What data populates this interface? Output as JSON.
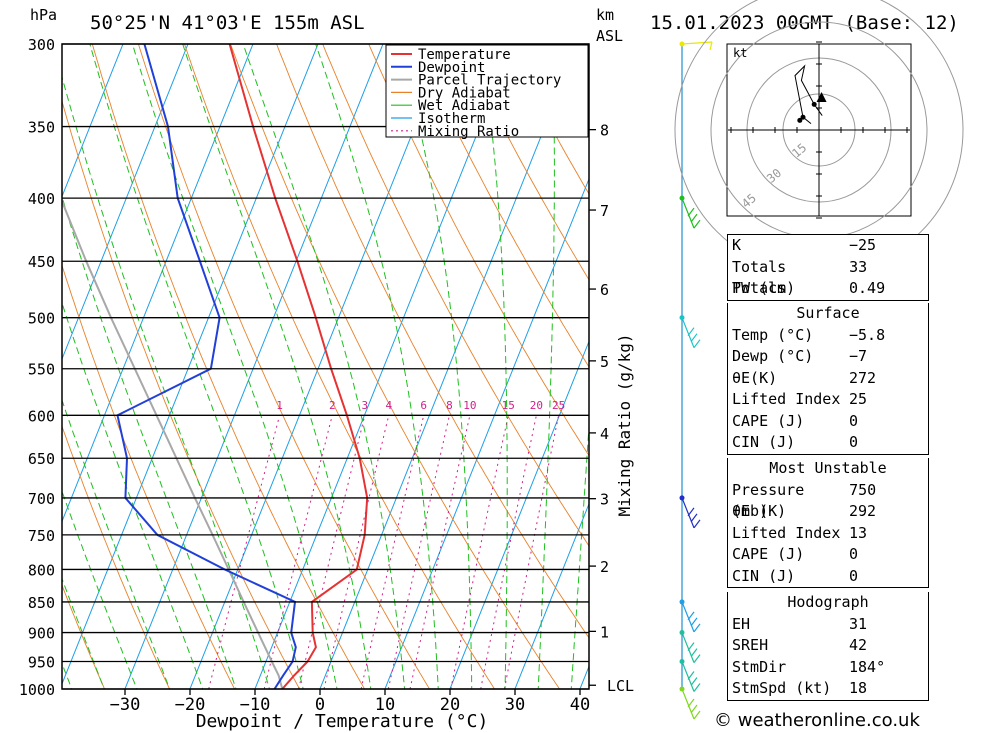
{
  "header": {
    "location": "50°25'N 41°03'E 155m ASL",
    "datetime": "15.01.2023 00GMT (Base: 12)",
    "left_unit": "hPa",
    "km_unit": "km",
    "asl_unit": "ASL"
  },
  "chart_data": {
    "type": "line",
    "title": "50°25'N 41°03'E 155m ASL",
    "xlabel": "Dewpoint / Temperature (°C)",
    "ylabel": "hPa",
    "right_axis_label": "Mixing Ratio (g/kg)",
    "x_ticks": [
      -30,
      -20,
      -10,
      0,
      10,
      20,
      30,
      40
    ],
    "pressure_ticks": [
      300,
      350,
      400,
      450,
      500,
      550,
      600,
      650,
      700,
      750,
      800,
      850,
      900,
      950,
      1000
    ],
    "km_ticks": [
      {
        "label": "8",
        "p": 352
      },
      {
        "label": "7",
        "p": 409
      },
      {
        "label": "6",
        "p": 474
      },
      {
        "label": "5",
        "p": 542
      },
      {
        "label": "4",
        "p": 620
      },
      {
        "label": "3",
        "p": 701
      },
      {
        "label": "2",
        "p": 795
      },
      {
        "label": "1",
        "p": 898
      },
      {
        "label": "LCL",
        "p": 993
      }
    ],
    "mixing_ratio_labels": [
      "1",
      "2",
      "3",
      "4",
      "6",
      "8",
      "10",
      "15",
      "20",
      "25"
    ],
    "mixing_ratio_values": [
      1,
      2,
      3,
      4,
      6,
      8,
      10,
      15,
      20,
      25
    ],
    "legend": [
      "Temperature",
      "Dewpoint",
      "Parcel Trajectory",
      "Dry Adiabat",
      "Wet Adiabat",
      "Isotherm",
      "Mixing Ratio"
    ],
    "legend_location": "upper-right",
    "colors": {
      "temperature": "#e53232",
      "dewpoint": "#2040d8",
      "parcel": "#a8a8a8",
      "dry_adiabat": "#e8822a",
      "wet_adiabat": "#1fbf1f",
      "isotherm": "#1e9fe6",
      "mixing_ratio": "#d0208c"
    },
    "series": [
      {
        "name": "Temperature",
        "points": [
          [
            1000,
            -5.8
          ],
          [
            975,
            -4.8
          ],
          [
            950,
            -3.6
          ],
          [
            925,
            -3.2
          ],
          [
            900,
            -4.6
          ],
          [
            850,
            -6.6
          ],
          [
            800,
            -1.7
          ],
          [
            750,
            -2.6
          ],
          [
            700,
            -4.5
          ],
          [
            650,
            -8.1
          ],
          [
            600,
            -12.7
          ],
          [
            550,
            -18.0
          ],
          [
            500,
            -23.5
          ],
          [
            450,
            -29.8
          ],
          [
            400,
            -37.1
          ],
          [
            350,
            -44.9
          ],
          [
            300,
            -53.6
          ]
        ]
      },
      {
        "name": "Dewpoint",
        "points": [
          [
            1000,
            -7.0
          ],
          [
            975,
            -6.5
          ],
          [
            950,
            -5.9
          ],
          [
            925,
            -6.3
          ],
          [
            900,
            -7.9
          ],
          [
            850,
            -9.2
          ],
          [
            800,
            -22.0
          ],
          [
            750,
            -34.5
          ],
          [
            700,
            -41.7
          ],
          [
            650,
            -43.9
          ],
          [
            600,
            -48.0
          ],
          [
            550,
            -36.5
          ],
          [
            500,
            -38.3
          ],
          [
            450,
            -44.8
          ],
          [
            400,
            -52.1
          ],
          [
            350,
            -58.0
          ],
          [
            300,
            -66.7
          ]
        ]
      },
      {
        "name": "Parcel Trajectory",
        "points": [
          [
            1000,
            -5.8
          ],
          [
            975,
            -7.2
          ],
          [
            950,
            -9.1
          ],
          [
            900,
            -13.0
          ],
          [
            850,
            -17.1
          ],
          [
            800,
            -21.4
          ],
          [
            750,
            -26.0
          ],
          [
            700,
            -31.0
          ],
          [
            650,
            -36.3
          ],
          [
            600,
            -42.0
          ],
          [
            550,
            -48.2
          ],
          [
            500,
            -55.0
          ],
          [
            450,
            -62.3
          ],
          [
            400,
            -70.1
          ],
          [
            350,
            -78.5
          ],
          [
            300,
            -87.3
          ]
        ]
      }
    ],
    "hodograph": {
      "unit": "kt",
      "ring_labels": [
        "15",
        "30",
        "45"
      ],
      "points": [
        [
          1.0,
          4.5
        ],
        [
          -1.5,
          8.0
        ],
        [
          -5.5,
          15.5
        ],
        [
          -4.5,
          20.0
        ],
        [
          -7.5,
          17.0
        ],
        [
          -5.0,
          4.0
        ],
        [
          -2.5,
          2.0
        ]
      ],
      "storm_motion": [
        0.8,
        10.0
      ]
    },
    "wind_barbs": [
      {
        "p": 300,
        "color": "#e8e800"
      },
      {
        "p": 400,
        "color": "#1fbf1f"
      },
      {
        "p": 500,
        "color": "#19c4c4"
      },
      {
        "p": 700,
        "color": "#2030c8"
      },
      {
        "p": 850,
        "color": "#1e9fe6"
      },
      {
        "p": 900,
        "color": "#1fbf9f"
      },
      {
        "p": 950,
        "color": "#1fbf9f"
      },
      {
        "p": 1000,
        "color": "#7fd81f"
      }
    ]
  },
  "indices": {
    "rows": [
      {
        "label": "K",
        "value": "-25"
      },
      {
        "label": "Totals Totals",
        "value": "33"
      },
      {
        "label": "PW (cm)",
        "value": "0.49"
      }
    ]
  },
  "surface": {
    "title": "Surface",
    "rows": [
      {
        "label": "Temp (°C)",
        "value": "-5.8"
      },
      {
        "label": "Dewp (°C)",
        "value": "-7"
      },
      {
        "label": "θE(K)",
        "value": "272"
      },
      {
        "label": "Lifted Index",
        "value": "25"
      },
      {
        "label": "CAPE (J)",
        "value": "0"
      },
      {
        "label": "CIN (J)",
        "value": "0"
      }
    ]
  },
  "most_unstable": {
    "title": "Most Unstable",
    "rows": [
      {
        "label": "Pressure (mb)",
        "value": "750"
      },
      {
        "label": "θE (K)",
        "value": "292"
      },
      {
        "label": "Lifted Index",
        "value": "13"
      },
      {
        "label": "CAPE (J)",
        "value": "0"
      },
      {
        "label": "CIN (J)",
        "value": "0"
      }
    ]
  },
  "hodograph_table": {
    "title": "Hodograph",
    "rows": [
      {
        "label": "EH",
        "value": "31"
      },
      {
        "label": "SREH",
        "value": "42"
      },
      {
        "label": "StmDir",
        "value": "184°"
      },
      {
        "label": "StmSpd (kt)",
        "value": "18"
      }
    ]
  },
  "footer": {
    "copyright": "© weatheronline.co.uk"
  }
}
